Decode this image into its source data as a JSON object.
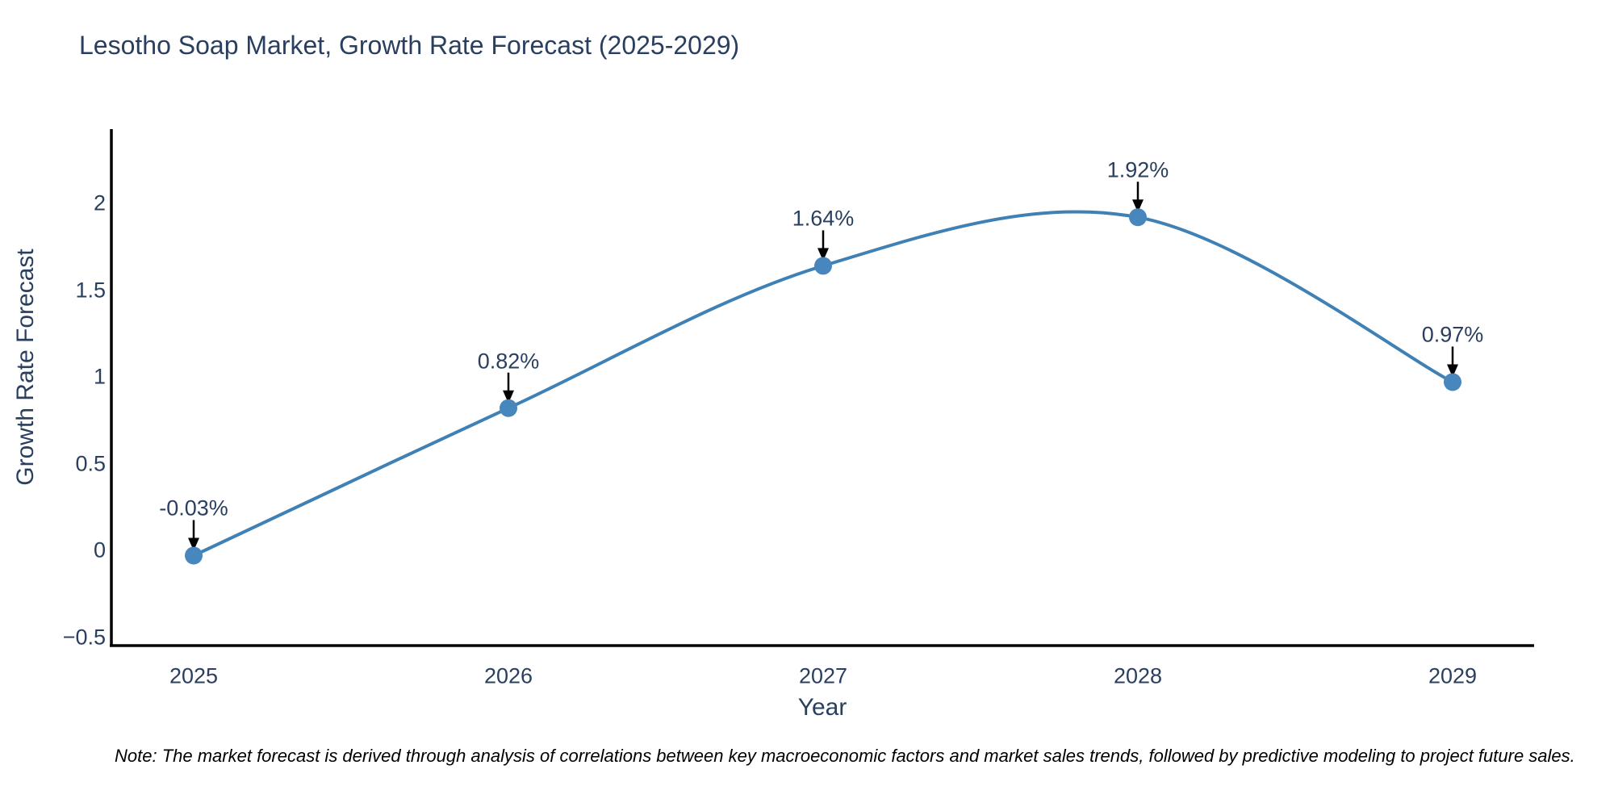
{
  "chart_data": {
    "type": "line",
    "title": "Lesotho Soap Market, Growth Rate Forecast (2025-2029)",
    "xlabel": "Year",
    "ylabel": "Growth Rate Forecast",
    "x": [
      2025,
      2026,
      2027,
      2028,
      2029
    ],
    "series": [
      {
        "name": "Growth Rate Forecast",
        "values": [
          -0.03,
          0.82,
          1.64,
          1.92,
          0.97
        ]
      }
    ],
    "point_labels": [
      "-0.03%",
      "0.82%",
      "1.64%",
      "1.92%",
      "0.97%"
    ],
    "xtick_labels": [
      "2025",
      "2026",
      "2027",
      "2028",
      "2029"
    ],
    "ytick_labels": [
      "−0.5",
      "0",
      "0.5",
      "1",
      "1.5",
      "2"
    ],
    "yticks": [
      -0.5,
      0,
      0.5,
      1,
      1.5,
      2
    ],
    "ylim": [
      -0.55,
      2.43
    ],
    "xlim": [
      2024.74,
      2029.26
    ],
    "line_shape": "spline",
    "grid": false,
    "legend_position": "none",
    "annotations_arrow": "down-arrow-to-point",
    "colors": {
      "line": "#3f80b5",
      "marker": "#4787bd",
      "arrow": "#000000",
      "text": "#2a3f5f",
      "axis_line": "#000000",
      "note_text": "#000000",
      "background": "#ffffff"
    }
  },
  "note": {
    "text": "Note: The market forecast is derived through analysis of correlations between key macroeconomic factors and market sales trends, followed by predictive modeling to project future sales."
  }
}
